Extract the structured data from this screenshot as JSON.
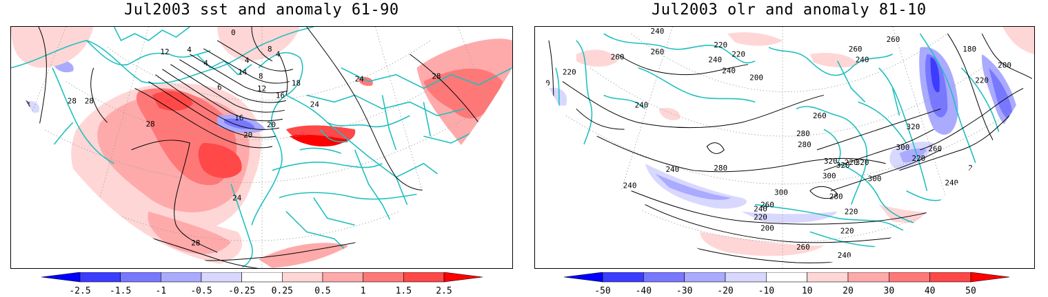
{
  "panels": [
    {
      "title": "Jul2003 sst and anomaly 61-90",
      "contour_labels": [
        "28",
        "24",
        "28",
        "28",
        "12",
        "4",
        "4",
        "4",
        "0",
        "8",
        "4",
        "14",
        "8",
        "6",
        "12",
        "16",
        "16",
        "18",
        "20",
        "20",
        "24",
        "24",
        "28",
        "28",
        "24",
        "28"
      ],
      "colorbar": {
        "ticks": [
          "-2.5",
          "-1.5",
          "-1",
          "-0.5",
          "-0.25",
          "0.25",
          "0.5",
          "1",
          "1.5",
          "2.5"
        ],
        "colors": [
          "#0000ff",
          "#3c3cff",
          "#7878ff",
          "#aaaaff",
          "#d8d8ff",
          "#ffffff",
          "#ffd6d6",
          "#ffaaaa",
          "#ff7878",
          "#ff4848",
          "#ff0000"
        ]
      }
    },
    {
      "title": "Jul2003 olr and anomaly 81-10",
      "contour_labels": [
        "280",
        "260",
        "240",
        "220",
        "220",
        "240",
        "240",
        "260",
        "200",
        "180",
        "200",
        "220",
        "260",
        "240",
        "260",
        "200",
        "220",
        "240",
        "280",
        "320",
        "300",
        "320",
        "240",
        "240",
        "280",
        "260",
        "280",
        "220",
        "300",
        "320",
        "320",
        "300",
        "300",
        "280",
        "220",
        "260",
        "240",
        "260",
        "220",
        "200",
        "260",
        "220",
        "220",
        "240",
        "260",
        "240",
        "280"
      ],
      "colorbar": {
        "ticks": [
          "-50",
          "-40",
          "-30",
          "-20",
          "-10",
          "10",
          "20",
          "30",
          "40",
          "50"
        ],
        "colors": [
          "#0000ff",
          "#3c3cff",
          "#7878ff",
          "#aaaaff",
          "#d8d8ff",
          "#ffffff",
          "#ffd6d6",
          "#ffaaaa",
          "#ff7878",
          "#ff4848",
          "#ff0000"
        ]
      }
    }
  ]
}
